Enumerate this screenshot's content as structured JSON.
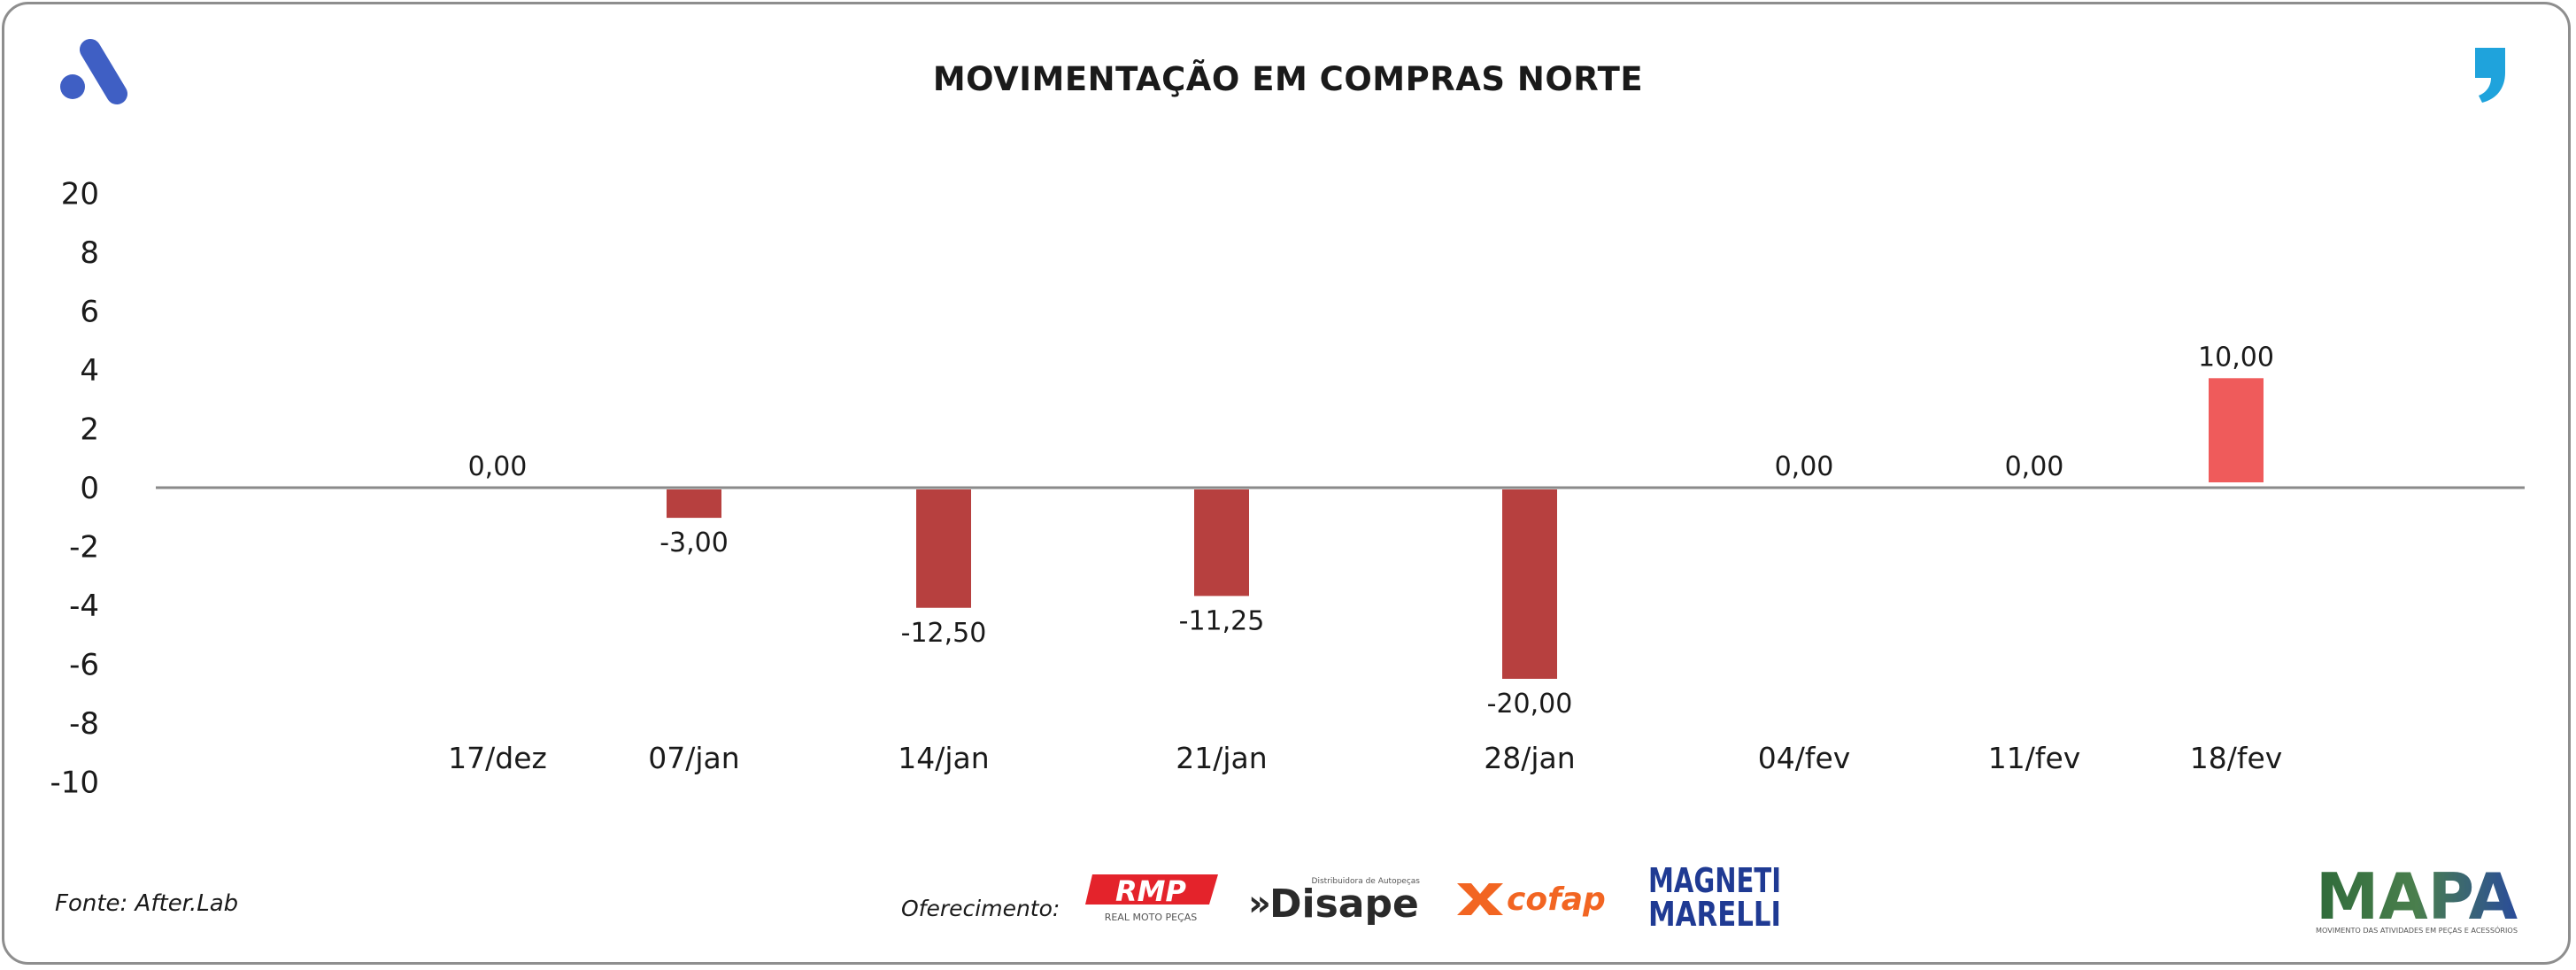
{
  "header": {
    "title": "MOVIMENTAÇÃO EM COMPRAS NORTE"
  },
  "chart_data": {
    "type": "bar",
    "title": "MOVIMENTAÇÃO EM COMPRAS NORTE",
    "xlabel": "",
    "ylabel": "",
    "categories": [
      "17/dez",
      "07/jan",
      "14/jan",
      "21/jan",
      "28/jan",
      "04/fev",
      "11/fev",
      "18/fev"
    ],
    "values": [
      0,
      -3,
      -12.5,
      -11.25,
      -20,
      0,
      0,
      10
    ],
    "data_labels": [
      "0,00",
      "-3,00",
      "-12,50",
      "-11,25",
      "-20,00",
      "0,00",
      "0,00",
      "10,00"
    ],
    "y_tick_labels": [
      "20",
      "8",
      "6",
      "4",
      "2",
      "0",
      "-2",
      "-4",
      "-6",
      "-8",
      "-10"
    ],
    "grid": false,
    "legend": "none",
    "colors": {
      "negative": "#b7403f",
      "positive": "#ef5b5b",
      "axis": "#8a8a8a"
    }
  },
  "footer": {
    "source": "Fonte: After.Lab",
    "sponsor_label": "Oferecimento:",
    "sponsors": [
      {
        "name": "RMP",
        "tagline": "REAL MOTO PEÇAS",
        "color": "#e4232b"
      },
      {
        "name": "Disape",
        "tagline": "Distribuidora de Autopeças",
        "color": "#2a2a2a"
      },
      {
        "name": "cofap",
        "color": "#f26522"
      },
      {
        "name": "MAGNETI MARELLI",
        "color": "#1f3a93"
      }
    ],
    "brand": {
      "name": "MAPA",
      "tagline": "MOVIMENTO DAS ATIVIDADES EM PEÇAS E ACESSÓRIOS"
    }
  },
  "icons": {
    "top_left": "afterlab-a-logo-icon",
    "top_right": "comma-quote-icon"
  }
}
